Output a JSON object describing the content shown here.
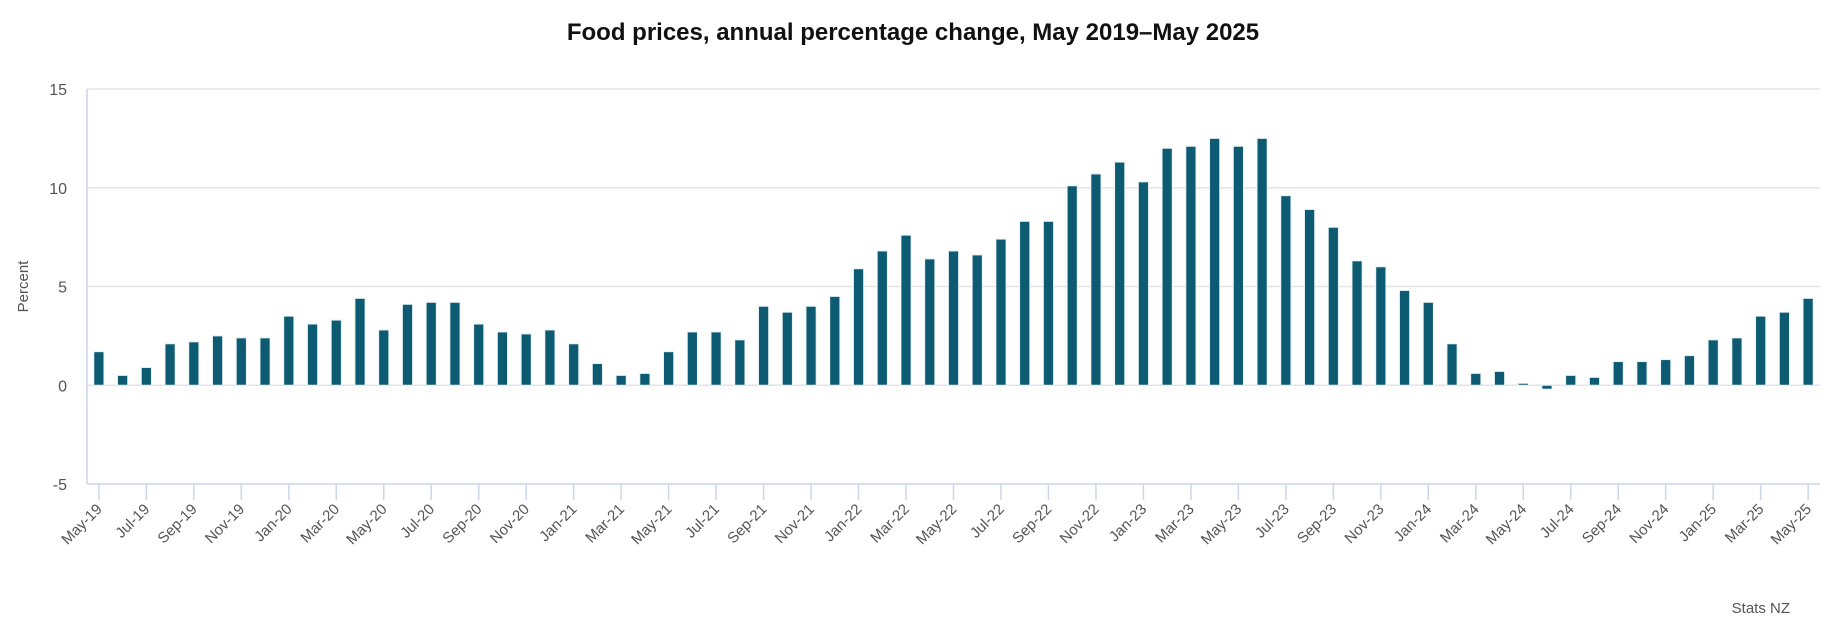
{
  "chart_data": {
    "type": "bar",
    "title": "Food prices, annual percentage change, May 2019–May 2025",
    "xlabel": "",
    "ylabel": "Percent",
    "ylim": [
      -5,
      15
    ],
    "yticks": [
      -5,
      0,
      5,
      10,
      15
    ],
    "grid": true,
    "legend": "none",
    "source": "Stats NZ",
    "bar_color": "#0d5b72",
    "label_every": 2,
    "categories": [
      "May-19",
      "Jun-19",
      "Jul-19",
      "Aug-19",
      "Sep-19",
      "Oct-19",
      "Nov-19",
      "Dec-19",
      "Jan-20",
      "Feb-20",
      "Mar-20",
      "Apr-20",
      "May-20",
      "Jun-20",
      "Jul-20",
      "Aug-20",
      "Sep-20",
      "Oct-20",
      "Nov-20",
      "Dec-20",
      "Jan-21",
      "Feb-21",
      "Mar-21",
      "Apr-21",
      "May-21",
      "Jun-21",
      "Jul-21",
      "Aug-21",
      "Sep-21",
      "Oct-21",
      "Nov-21",
      "Dec-21",
      "Jan-22",
      "Feb-22",
      "Mar-22",
      "Apr-22",
      "May-22",
      "Jun-22",
      "Jul-22",
      "Aug-22",
      "Sep-22",
      "Oct-22",
      "Nov-22",
      "Dec-22",
      "Jan-23",
      "Feb-23",
      "Mar-23",
      "Apr-23",
      "May-23",
      "Jun-23",
      "Jul-23",
      "Aug-23",
      "Sep-23",
      "Oct-23",
      "Nov-23",
      "Dec-23",
      "Jan-24",
      "Feb-24",
      "Mar-24",
      "Apr-24",
      "May-24",
      "Jun-24",
      "Jul-24",
      "Aug-24",
      "Sep-24",
      "Oct-24",
      "Nov-24",
      "Dec-24",
      "Jan-25",
      "Feb-25",
      "Mar-25",
      "Apr-25",
      "May-25"
    ],
    "values": [
      1.7,
      0.5,
      0.9,
      2.1,
      2.2,
      2.5,
      2.4,
      2.4,
      3.5,
      3.1,
      3.3,
      4.4,
      2.8,
      4.1,
      4.2,
      4.2,
      3.1,
      2.7,
      2.6,
      2.8,
      2.1,
      1.1,
      0.5,
      0.6,
      1.7,
      2.7,
      2.7,
      2.3,
      4.0,
      3.7,
      4.0,
      4.5,
      5.9,
      6.8,
      7.6,
      6.4,
      6.8,
      6.6,
      7.4,
      8.3,
      8.3,
      10.1,
      10.7,
      11.3,
      10.3,
      12.0,
      12.1,
      12.5,
      12.1,
      12.5,
      9.6,
      8.9,
      8.0,
      6.3,
      6.0,
      4.8,
      4.2,
      2.1,
      0.6,
      0.7,
      0.1,
      -0.2,
      0.5,
      0.4,
      1.2,
      1.2,
      1.3,
      1.5,
      2.3,
      2.4,
      3.5,
      3.7,
      4.4
    ]
  }
}
